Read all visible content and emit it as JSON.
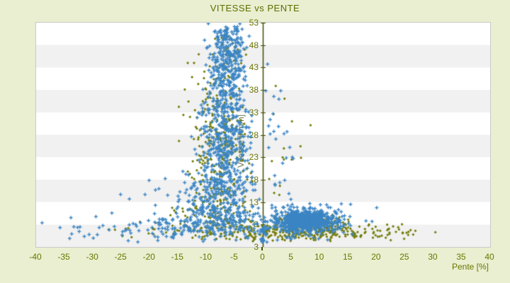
{
  "chart": {
    "colors": {
      "background": "#e9efd0",
      "title": "#5e6c00",
      "tick_labels": "#6b7500",
      "axis_line": "#424d00",
      "band_light": "#ffffff",
      "band_dark": "#f1f1f1",
      "plot_border": "#c9c9c9",
      "blue_marker": "#3b85c4",
      "olive_marker": "#737c08"
    }
  },
  "chart_data": {
    "type": "scatter",
    "title": "VITESSE vs PENTE",
    "xlabel": "Pente [%]",
    "ylabel": "Vitesse [km/h]",
    "xlim": [
      -40,
      40
    ],
    "ylim": [
      3,
      53
    ],
    "xticks": [
      -40,
      -35,
      -30,
      -25,
      -20,
      -15,
      -10,
      -5,
      0,
      5,
      10,
      15,
      20,
      25,
      30,
      35,
      40
    ],
    "yticks": [
      3,
      8,
      13,
      18,
      23,
      28,
      33,
      38,
      43,
      48,
      53
    ],
    "grid": "alternating-horizontal-bands-every-5",
    "legend": "none",
    "y_axis_position": "at-x-zero",
    "seed": 20,
    "series": [
      {
        "name": "olive-series",
        "color": "#737c08",
        "marker": "diamond",
        "clusters": [
          {
            "n": 300,
            "cx": -7.8,
            "sx": 2.6,
            "cy": 25,
            "sy": 10,
            "xr": [
              -15,
              -1.5
            ],
            "yr": [
              7,
              46
            ]
          },
          {
            "n": 25,
            "cx": -5.5,
            "sx": 2,
            "cy": 47,
            "sy": 2.5,
            "xr": [
              -9,
              -2
            ],
            "yr": [
              43,
              52
            ]
          },
          {
            "n": 270,
            "cx": 4,
            "sx": 8.5,
            "cy": 6.2,
            "sy": 1.1,
            "xr": [
              -14,
              30
            ],
            "yr": [
              4.2,
              9
            ]
          },
          {
            "n": 160,
            "cx": 8.5,
            "sx": 3.2,
            "cy": 7.8,
            "sy": 1.3,
            "xr": [
              2,
              17
            ],
            "yr": [
              5,
              11
            ]
          },
          {
            "n": 34,
            "cx": 21,
            "sx": 5,
            "cy": 6.3,
            "sy": 1,
            "xr": [
              14,
              33
            ],
            "yr": [
              4.5,
              8.5
            ]
          },
          {
            "n": 12,
            "cx": -19,
            "sx": 5.5,
            "cy": 7,
            "sy": 1.8,
            "xr": [
              -30,
              -11
            ],
            "yr": [
              4.5,
              11
            ]
          },
          {
            "n": 16,
            "cx": 5,
            "sx": 3.5,
            "cy": 26,
            "sy": 8,
            "xr": [
              0.5,
              12
            ],
            "yr": [
              13,
              40
            ]
          },
          {
            "n": 80,
            "cx": -9,
            "sx": 5,
            "cy": 9,
            "sy": 2.5,
            "xr": [
              -22,
              -1
            ],
            "yr": [
              5,
              15
            ]
          }
        ]
      },
      {
        "name": "blue-series",
        "color": "#3b85c4",
        "marker": "plus",
        "clusters": [
          {
            "n": 340,
            "cx": -6.3,
            "sx": 1.7,
            "cy": 44,
            "sy": 5.5,
            "xr": [
              -11,
              -2
            ],
            "yr": [
              33,
              53
            ]
          },
          {
            "n": 380,
            "cx": -6.8,
            "sx": 2.3,
            "cy": 27,
            "sy": 6,
            "xr": [
              -13,
              -1
            ],
            "yr": [
              15,
              40
            ]
          },
          {
            "n": 300,
            "cx": -8,
            "sx": 4,
            "cy": 13,
            "sy": 4,
            "xr": [
              -20,
              -0.5
            ],
            "yr": [
              6,
              22
            ]
          },
          {
            "n": 170,
            "cx": -9,
            "sx": 6.5,
            "cy": 7.5,
            "sy": 2,
            "xr": [
              -27,
              2
            ],
            "yr": [
              4.2,
              13
            ]
          },
          {
            "n": 650,
            "cx": 7.2,
            "sx": 2.4,
            "cy": 8.8,
            "sy": 1.1,
            "xr": [
              1.5,
              14.5
            ],
            "yr": [
              6,
              12
            ]
          },
          {
            "n": 160,
            "cx": 8,
            "sx": 4.8,
            "cy": 9,
            "sy": 2.4,
            "xr": [
              0.5,
              21
            ],
            "yr": [
              4.5,
              15
            ]
          },
          {
            "n": 40,
            "cx": -26,
            "sx": 6.5,
            "cy": 6.5,
            "sy": 1.6,
            "xr": [
              -40,
              -15
            ],
            "yr": [
              4,
              11
            ]
          },
          {
            "n": 7,
            "cx": -21,
            "sx": 2.5,
            "cy": 14,
            "sy": 2.5,
            "xr": [
              -26,
              -16
            ],
            "yr": [
              10,
              19
            ]
          },
          {
            "n": 26,
            "cx": 2.5,
            "sx": 1.8,
            "cy": 28,
            "sy": 9,
            "xr": [
              0.3,
              8
            ],
            "yr": [
              14,
              49
            ]
          },
          {
            "n": 25,
            "cx": 0.1,
            "sx": 0.35,
            "cy": 6,
            "sy": 1.8,
            "xr": [
              -0.5,
              0.8
            ],
            "yr": [
              3.6,
              10.5
            ]
          }
        ]
      }
    ]
  }
}
